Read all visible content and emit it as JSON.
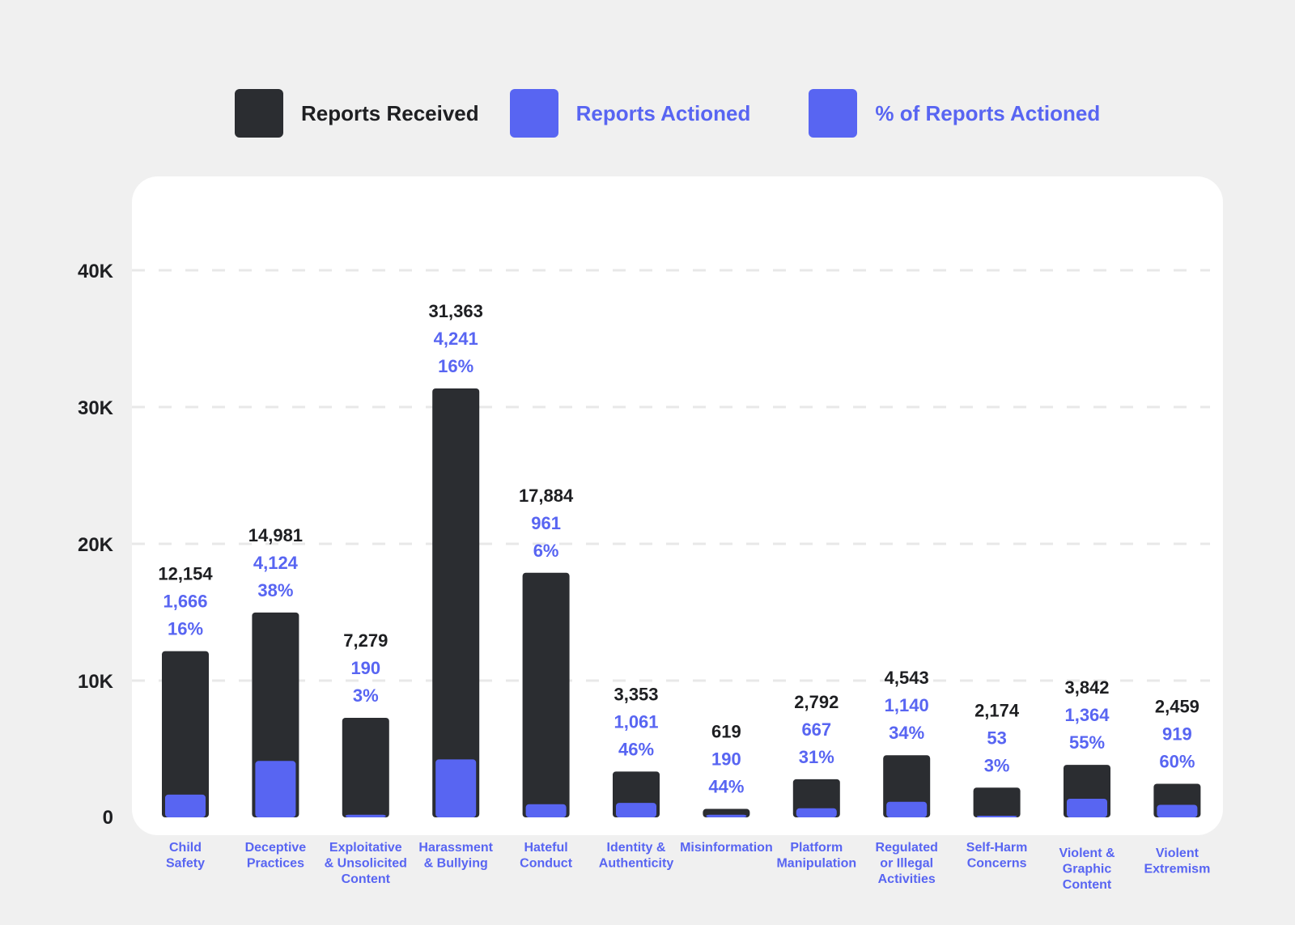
{
  "colors": {
    "received": "#2b2d31",
    "actioned": "#5865f2",
    "text_dark": "#1e1f22",
    "grid": "#e8e8e8"
  },
  "legend": [
    {
      "label": "Reports Received",
      "color": "#2b2d31",
      "text_color": "#1e1f22"
    },
    {
      "label": "Reports Actioned",
      "color": "#5865f2",
      "text_color": "#5865f2"
    },
    {
      "label": "% of Reports Actioned",
      "color": "#5865f2",
      "text_color": "#5865f2"
    }
  ],
  "chart_data": {
    "type": "bar",
    "title": "",
    "xlabel": "",
    "ylabel": "",
    "ylim": [
      0,
      40000
    ],
    "yticks": [
      0,
      10000,
      20000,
      30000,
      40000
    ],
    "ytick_labels": [
      "0",
      "10K",
      "20K",
      "30K",
      "40K"
    ],
    "grid": true,
    "legend_position": "top",
    "categories": [
      [
        "Child",
        "Safety"
      ],
      [
        "Deceptive",
        "Practices"
      ],
      [
        "Exploitative",
        "& Unsolicited",
        "Content"
      ],
      [
        "Harassment",
        "& Bullying"
      ],
      [
        "Hateful",
        "Conduct"
      ],
      [
        "Identity &",
        "Authenticity"
      ],
      [
        "Misinformation"
      ],
      [
        "Platform",
        "Manipulation"
      ],
      [
        "Regulated",
        "or Illegal",
        "Activities"
      ],
      [
        "Self-Harm",
        "Concerns"
      ],
      [
        "Violent &",
        "Graphic",
        "Content"
      ],
      [
        "Violent",
        "Extremism"
      ]
    ],
    "series": [
      {
        "name": "Reports Received",
        "values": [
          12154,
          14981,
          7279,
          31363,
          17884,
          3353,
          619,
          2792,
          4543,
          2174,
          3842,
          2459
        ],
        "labels": [
          "12,154",
          "14,981",
          "7,279",
          "31,363",
          "17,884",
          "3,353",
          "619",
          "2,792",
          "4,543",
          "2,174",
          "3,842",
          "2,459"
        ]
      },
      {
        "name": "Reports Actioned",
        "values": [
          1666,
          4124,
          190,
          4241,
          961,
          1061,
          190,
          667,
          1140,
          53,
          1364,
          919
        ],
        "labels": [
          "1,666",
          "4,124",
          "190",
          "4,241",
          "961",
          "1,061",
          "190",
          "667",
          "1,140",
          "53",
          "1,364",
          "919"
        ]
      },
      {
        "name": "% of Reports Actioned",
        "values": [
          16,
          38,
          3,
          16,
          6,
          46,
          44,
          31,
          34,
          3,
          55,
          60
        ],
        "labels": [
          "16%",
          "38%",
          "3%",
          "16%",
          "6%",
          "46%",
          "44%",
          "31%",
          "34%",
          "3%",
          "55%",
          "60%"
        ]
      }
    ]
  }
}
